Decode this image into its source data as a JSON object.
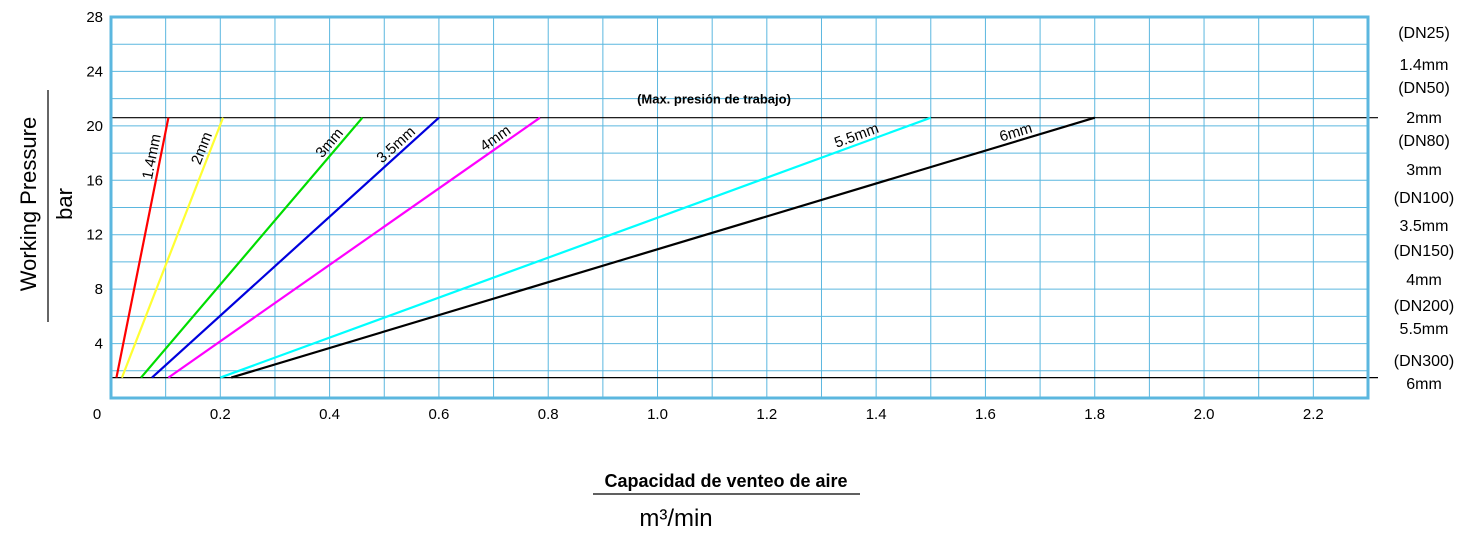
{
  "chart_data": {
    "type": "line",
    "xlabel": "Capacidad de venteo de aire",
    "xunit": "m³/min",
    "ylabel": "Working Pressure",
    "yunit": "bar",
    "xlim": [
      0,
      2.3
    ],
    "ylim": [
      0,
      28
    ],
    "x_ticks": [
      "0",
      "0.2",
      "0.4",
      "0.6",
      "0.8",
      "1.0",
      "1.2",
      "1.4",
      "1.6",
      "1.8",
      "2.0",
      "2.2"
    ],
    "x_tick_values": [
      0,
      0.2,
      0.4,
      0.6,
      0.8,
      1.0,
      1.2,
      1.4,
      1.6,
      1.8,
      2.0,
      2.2
    ],
    "y_ticks": [
      "28",
      "24",
      "20",
      "16",
      "12",
      "8",
      "4"
    ],
    "y_tick_values": [
      28,
      24,
      20,
      16,
      12,
      8,
      4
    ],
    "grid": true,
    "grid_color": "#5bb7df",
    "reference_lines": [
      {
        "y": 20.6,
        "label": "(Max. presión de trabajo)"
      },
      {
        "y": 1.5,
        "label": ""
      }
    ],
    "series": [
      {
        "name": "1.4mm",
        "color": "#ff0000",
        "x": [
          0.01,
          0.105
        ],
        "y": [
          1.5,
          20.6
        ]
      },
      {
        "name": "2mm",
        "color": "#ffff33",
        "x": [
          0.02,
          0.205
        ],
        "y": [
          1.5,
          20.6
        ]
      },
      {
        "name": "3mm",
        "color": "#00dd00",
        "x": [
          0.055,
          0.46
        ],
        "y": [
          1.5,
          20.6
        ]
      },
      {
        "name": "3.5mm",
        "color": "#0000dd",
        "x": [
          0.075,
          0.6
        ],
        "y": [
          1.5,
          20.6
        ]
      },
      {
        "name": "4mm",
        "color": "#ff00ff",
        "x": [
          0.105,
          0.785
        ],
        "y": [
          1.5,
          20.6
        ]
      },
      {
        "name": "5.5mm",
        "color": "#00ffff",
        "x": [
          0.2,
          1.5
        ],
        "y": [
          1.5,
          20.6
        ]
      },
      {
        "name": "6mm",
        "color": "#000000",
        "x": [
          0.22,
          1.8
        ],
        "y": [
          1.5,
          20.6
        ]
      }
    ],
    "legend": {
      "position": "right",
      "entries": [
        {
          "dn": "(DN25)",
          "size": "1.4mm"
        },
        {
          "dn": "(DN50)",
          "size": "2mm"
        },
        {
          "dn": "(DN80)",
          "size": "3mm"
        },
        {
          "dn": "(DN100)",
          "size": "3.5mm"
        },
        {
          "dn": "(DN150)",
          "size": "4mm"
        },
        {
          "dn": "(DN200)",
          "size": "5.5mm"
        },
        {
          "dn": "(DN300)",
          "size": "6mm"
        }
      ]
    }
  }
}
